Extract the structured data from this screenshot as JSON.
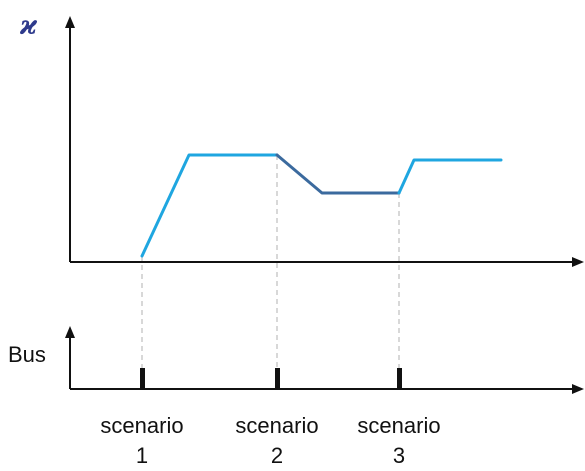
{
  "top_axis": {
    "symbol": "ϰ"
  },
  "bottom_axis": {
    "label": "Bus"
  },
  "scenarios": [
    {
      "word": "scenario",
      "number": "1"
    },
    {
      "word": "scenario",
      "number": "2"
    },
    {
      "word": "scenario",
      "number": "3"
    }
  ],
  "colors": {
    "axis": "#111111",
    "rising_segment": "#1fa6e0",
    "falling_segment": "#3b6a9e",
    "guide_line": "#bdbdbd",
    "symbol": "#2e3a8c"
  }
}
